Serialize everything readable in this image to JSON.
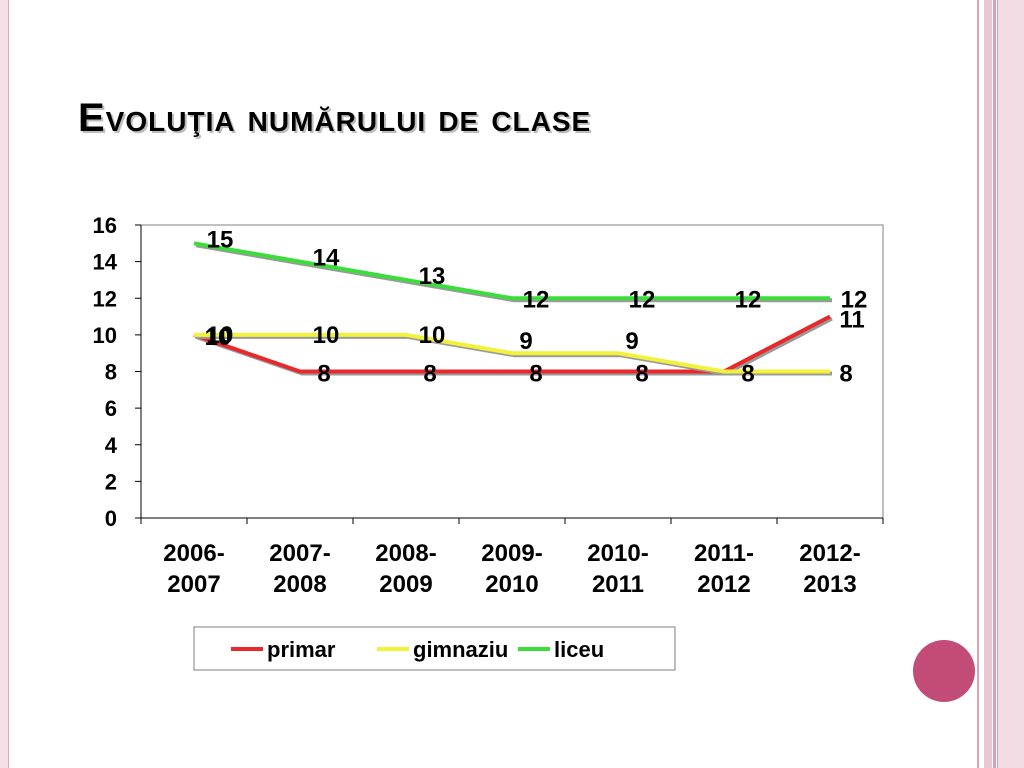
{
  "slide": {
    "title": "Evoluţia numărului de clase"
  },
  "chart_data": {
    "type": "line",
    "categories": [
      [
        "2006-",
        "2007"
      ],
      [
        "2007-",
        "2008"
      ],
      [
        "2008-",
        "2009"
      ],
      [
        "2009-",
        "2010"
      ],
      [
        "2010-",
        "2011"
      ],
      [
        "2011-",
        "2012"
      ],
      [
        "2012-",
        "2013"
      ]
    ],
    "series": [
      {
        "name": "primar",
        "color": "#e8282a",
        "values": [
          10,
          8,
          8,
          8,
          8,
          8,
          11
        ]
      },
      {
        "name": "gimnaziu",
        "color": "#f2f23a",
        "values": [
          10,
          10,
          10,
          9,
          9,
          8,
          8
        ]
      },
      {
        "name": "liceu",
        "color": "#3bdd3b",
        "values": [
          15,
          14,
          13,
          12,
          12,
          12,
          12
        ]
      }
    ],
    "ylim": [
      0,
      16
    ],
    "yticks": [
      0,
      2,
      4,
      6,
      8,
      10,
      12,
      14,
      16
    ],
    "grid": true,
    "legend": "bottom",
    "data_labels": true
  }
}
